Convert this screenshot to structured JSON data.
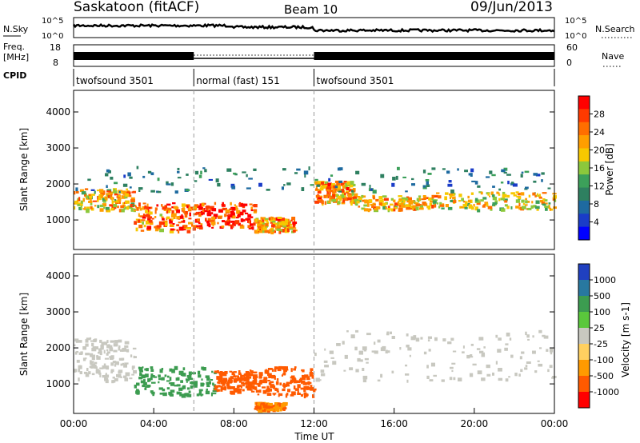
{
  "header": {
    "station": "Saskatoon (fitACF)",
    "beam": "Beam 10",
    "date": "09/Jun/2013"
  },
  "noise_panel": {
    "left_label": "N.Sky",
    "left_ticks": [
      "10^5",
      "10^0"
    ],
    "right_label": "N.Search",
    "right_ticks": [
      "10^5",
      "10^0"
    ]
  },
  "freq_panel": {
    "left_label_1": "Freq.",
    "left_label_2": "[MHz]",
    "left_ticks": [
      "18",
      "8"
    ],
    "right_label": "Nave",
    "right_ticks": [
      "60",
      "0"
    ]
  },
  "cpid_panel": {
    "label": "CPID",
    "segments": [
      {
        "name": "twofsound 3501",
        "start_h": 0,
        "end_h": 6
      },
      {
        "name": "normal (fast) 151",
        "start_h": 6,
        "end_h": 12
      },
      {
        "name": "twofsound 3501",
        "start_h": 12,
        "end_h": 24
      }
    ]
  },
  "power_colorbar": {
    "label": "Power [dB]",
    "ticks": [
      "28",
      "24",
      "20",
      "16",
      "12",
      "8",
      "4"
    ],
    "colors": [
      "#ff0000",
      "#ff3a00",
      "#ff6e00",
      "#ff9e00",
      "#f7c800",
      "#8cc83c",
      "#3ca05a",
      "#2e8060",
      "#1e6aa0",
      "#1a3cc8",
      "#0000ff"
    ]
  },
  "velocity_colorbar": {
    "label": "Velocity [m s-1]",
    "ticks": [
      "1000",
      "500",
      "100",
      "25",
      "-25",
      "-100",
      "-500",
      "-1000"
    ],
    "colors": [
      "#2040c0",
      "#2878a0",
      "#3c9c50",
      "#5ac83c",
      "#c8c8c0",
      "#ffd060",
      "#ff9a00",
      "#ff5a00",
      "#ff0000"
    ]
  },
  "chart_data": {
    "type": "heatmap",
    "xlabel": "Time UT",
    "x_ticks": [
      "00:00",
      "04:00",
      "08:00",
      "12:00",
      "16:00",
      "20:00",
      "00:00"
    ],
    "xlim_hours": [
      0,
      24
    ],
    "ylabel": "Slant Range [km]",
    "y_ticks": [
      1000,
      2000,
      3000,
      4000
    ],
    "ylim_km": [
      180,
      4600
    ],
    "mode_boundaries_h": [
      6,
      12
    ],
    "power_bands": [
      {
        "t0": 0,
        "t1": 3,
        "r0": 1300,
        "r1": 1900,
        "value": 20
      },
      {
        "t0": 3,
        "t1": 6,
        "r0": 700,
        "r1": 1500,
        "value": 24
      },
      {
        "t0": 6,
        "t1": 9,
        "r0": 800,
        "r1": 1500,
        "value": 28
      },
      {
        "t0": 9,
        "t1": 11,
        "r0": 700,
        "r1": 1100,
        "value": 22
      },
      {
        "t0": 12,
        "t1": 14,
        "r0": 1500,
        "r1": 2100,
        "value": 22
      },
      {
        "t0": 14,
        "t1": 18,
        "r0": 1300,
        "r1": 1700,
        "value": 20
      },
      {
        "t0": 18,
        "t1": 24,
        "r0": 1300,
        "r1": 1800,
        "value": 18
      },
      {
        "t0": 0,
        "t1": 24,
        "r0": 1800,
        "r1": 2500,
        "value": 8
      }
    ],
    "velocity_bands": [
      {
        "t0": 0,
        "t1": 3,
        "r0": 1100,
        "r1": 2300,
        "value": 0
      },
      {
        "t0": 3,
        "t1": 7,
        "r0": 700,
        "r1": 1500,
        "value": 150
      },
      {
        "t0": 7,
        "t1": 9,
        "r0": 800,
        "r1": 1400,
        "value": -500
      },
      {
        "t0": 9,
        "t1": 12,
        "r0": 700,
        "r1": 1500,
        "value": -500
      },
      {
        "t0": 9,
        "t1": 10.5,
        "r0": 300,
        "r1": 500,
        "value": -300
      },
      {
        "t0": 12,
        "t1": 24,
        "r0": 1100,
        "r1": 2500,
        "value": 0
      }
    ]
  }
}
